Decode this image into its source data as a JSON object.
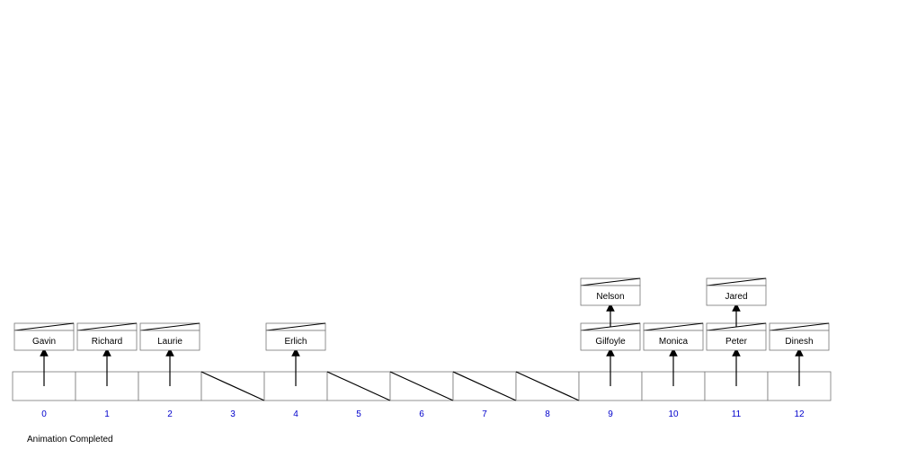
{
  "status": "Animation Completed",
  "colors": {
    "stroke": "#000000",
    "index_text": "#0000cc",
    "cell_stroke": "#777777"
  },
  "table": {
    "indices": [
      "0",
      "1",
      "2",
      "3",
      "4",
      "5",
      "6",
      "7",
      "8",
      "9",
      "10",
      "11",
      "12"
    ],
    "buckets": [
      [
        "Gavin"
      ],
      [
        "Richard"
      ],
      [
        "Laurie"
      ],
      [],
      [
        "Erlich"
      ],
      [],
      [],
      [],
      [],
      [
        "Gilfoyle",
        "Nelson"
      ],
      [
        "Monica"
      ],
      [
        "Peter",
        "Jared"
      ],
      [
        "Dinesh"
      ]
    ]
  }
}
